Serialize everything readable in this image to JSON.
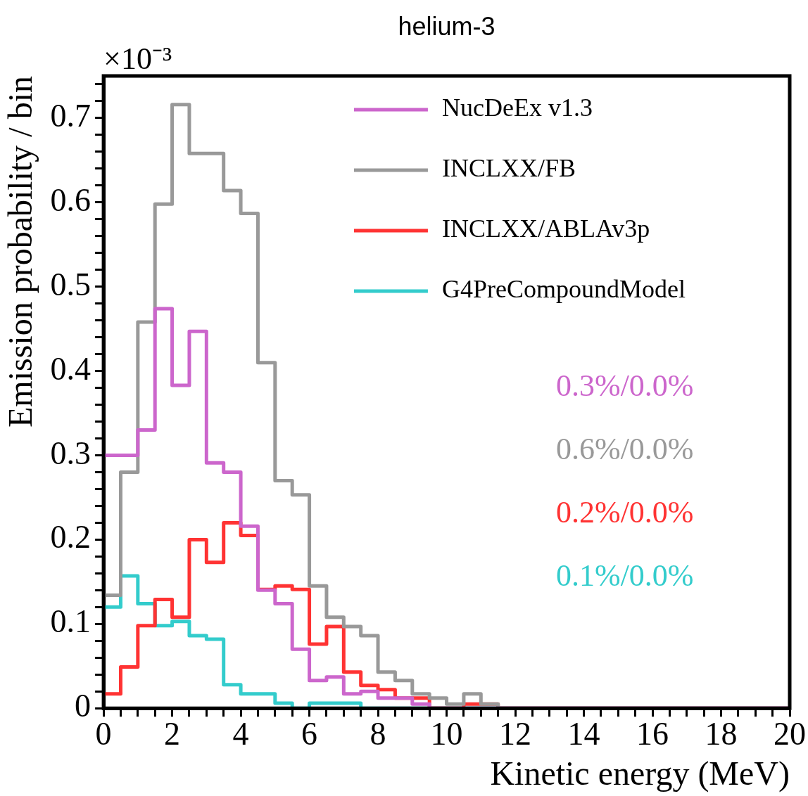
{
  "chart_data": {
    "type": "histogram",
    "title": "helium-3",
    "xlabel": "Kinetic energy (MeV)",
    "ylabel": "Emission probability / bin",
    "bins": [
      0,
      0.5,
      1,
      1.5,
      2,
      2.5,
      3,
      3.5,
      4,
      4.5,
      5,
      5.5,
      6,
      6.5,
      7,
      7.5,
      8,
      8.5,
      9,
      9.5,
      10,
      10.5,
      11,
      11.5,
      12,
      12.5,
      13,
      13.5,
      14,
      14.5,
      15,
      15.5,
      16,
      16.5,
      17,
      17.5,
      18,
      18.5,
      19,
      19.5,
      20
    ],
    "series": [
      {
        "name": "NucDeEx v1.3",
        "color": "#cc66cc",
        "values": [
          0.3,
          0.3,
          0.33,
          0.474,
          0.383,
          0.447,
          0.291,
          0.28,
          0.216,
          0.14,
          0.124,
          0.07,
          0.033,
          0.037,
          0.017,
          0.02,
          0.012,
          0.012,
          0.005,
          0,
          0,
          0,
          0,
          0,
          0,
          0,
          0,
          0,
          0,
          0,
          0,
          0,
          0,
          0,
          0,
          0,
          0,
          0,
          0,
          0
        ]
      },
      {
        "name": "INCLXX/FB",
        "color": "#999999",
        "values": [
          0.134,
          0.28,
          0.458,
          0.598,
          0.716,
          0.658,
          0.658,
          0.614,
          0.587,
          0.41,
          0.27,
          0.253,
          0.145,
          0.108,
          0.097,
          0.086,
          0.043,
          0.033,
          0.017,
          0.012,
          0.005,
          0.017,
          0.005,
          0,
          0,
          0,
          0,
          0,
          0,
          0,
          0,
          0,
          0,
          0,
          0,
          0,
          0,
          0,
          0,
          0
        ]
      },
      {
        "name": "INCLXX/ABLAv3p",
        "color": "#ff3333",
        "values": [
          0.017,
          0.049,
          0.098,
          0.129,
          0.108,
          0.2,
          0.173,
          0.22,
          0.205,
          0.141,
          0.145,
          0.141,
          0.076,
          0.097,
          0.043,
          0.027,
          0.022,
          0.012,
          0.012,
          0,
          0,
          0.005,
          0.005,
          0,
          0,
          0,
          0,
          0,
          0,
          0,
          0,
          0,
          0,
          0,
          0,
          0,
          0,
          0,
          0,
          0
        ]
      },
      {
        "name": "G4PreCompoundModel",
        "color": "#33cccc",
        "values": [
          0.12,
          0.157,
          0.124,
          0.098,
          0.103,
          0.086,
          0.082,
          0.028,
          0.017,
          0.017,
          0.006,
          0,
          0.006,
          0.006,
          0.006,
          0,
          0,
          0,
          0,
          0,
          0,
          0,
          0,
          0,
          0,
          0,
          0,
          0,
          0,
          0,
          0,
          0,
          0,
          0,
          0,
          0,
          0,
          0,
          0,
          0
        ]
      }
    ],
    "xlim": [
      0,
      20
    ],
    "xticks": [
      0,
      {
        "value": 0.5,
        "label": null
      },
      {
        "value": 1,
        "label": null
      },
      {
        "value": 1.5,
        "label": null
      },
      2,
      {
        "value": 2.5,
        "label": null
      },
      {
        "value": 3,
        "label": null
      },
      {
        "value": 3.5,
        "label": null
      },
      4,
      {
        "value": 4.5,
        "label": null
      },
      {
        "value": 5,
        "label": null
      },
      {
        "value": 5.5,
        "label": null
      },
      6,
      {
        "value": 6.5,
        "label": null
      },
      {
        "value": 7,
        "label": null
      },
      {
        "value": 7.5,
        "label": null
      },
      8,
      {
        "value": 8.5,
        "label": null
      },
      {
        "value": 9,
        "label": null
      },
      {
        "value": 9.5,
        "label": null
      },
      10,
      {
        "value": 10.5,
        "label": null
      },
      {
        "value": 11,
        "label": null
      },
      {
        "value": 11.5,
        "label": null
      },
      12,
      {
        "value": 12.5,
        "label": null
      },
      {
        "value": 13,
        "label": null
      },
      {
        "value": 13.5,
        "label": null
      },
      14,
      {
        "value": 14.5,
        "label": null
      },
      {
        "value": 15,
        "label": null
      },
      {
        "value": 15.5,
        "label": null
      },
      16,
      {
        "value": 16.5,
        "label": null
      },
      {
        "value": 17,
        "label": null
      },
      {
        "value": 17.5,
        "label": null
      },
      18,
      {
        "value": 18.5,
        "label": null
      },
      {
        "value": 19,
        "label": null
      },
      {
        "value": 19.5,
        "label": null
      },
      20
    ],
    "ylim": [
      0,
      0.75
    ],
    "yticks": [
      0,
      {
        "value": 0.02,
        "label": null
      },
      {
        "value": 0.04,
        "label": null
      },
      {
        "value": 0.06,
        "label": null
      },
      {
        "value": 0.08,
        "label": null
      },
      0.1,
      {
        "value": 0.12,
        "label": null
      },
      {
        "value": 0.14,
        "label": null
      },
      {
        "value": 0.16,
        "label": null
      },
      {
        "value": 0.18,
        "label": null
      },
      0.2,
      {
        "value": 0.22,
        "label": null
      },
      {
        "value": 0.24,
        "label": null
      },
      {
        "value": 0.26,
        "label": null
      },
      {
        "value": 0.28,
        "label": null
      },
      0.3,
      {
        "value": 0.32,
        "label": null
      },
      {
        "value": 0.34,
        "label": null
      },
      {
        "value": 0.36,
        "label": null
      },
      {
        "value": 0.38,
        "label": null
      },
      0.4,
      {
        "value": 0.42,
        "label": null
      },
      {
        "value": 0.44,
        "label": null
      },
      {
        "value": 0.46,
        "label": null
      },
      {
        "value": 0.48,
        "label": null
      },
      0.5,
      {
        "value": 0.52,
        "label": null
      },
      {
        "value": 0.54,
        "label": null
      },
      {
        "value": 0.56,
        "label": null
      },
      {
        "value": 0.58,
        "label": null
      },
      0.6,
      {
        "value": 0.62,
        "label": null
      },
      {
        "value": 0.64,
        "label": null
      },
      {
        "value": 0.66,
        "label": null
      },
      {
        "value": 0.68,
        "label": null
      },
      0.7,
      {
        "value": 0.72,
        "label": null
      },
      {
        "value": 0.74,
        "label": null
      }
    ],
    "legend": "top right",
    "grid": false,
    "annotations": [
      "×10⁻³",
      "0.3%/0.0%",
      "0.6%/0.0%",
      "0.2%/0.0%",
      "0.1%/0.0%"
    ]
  }
}
